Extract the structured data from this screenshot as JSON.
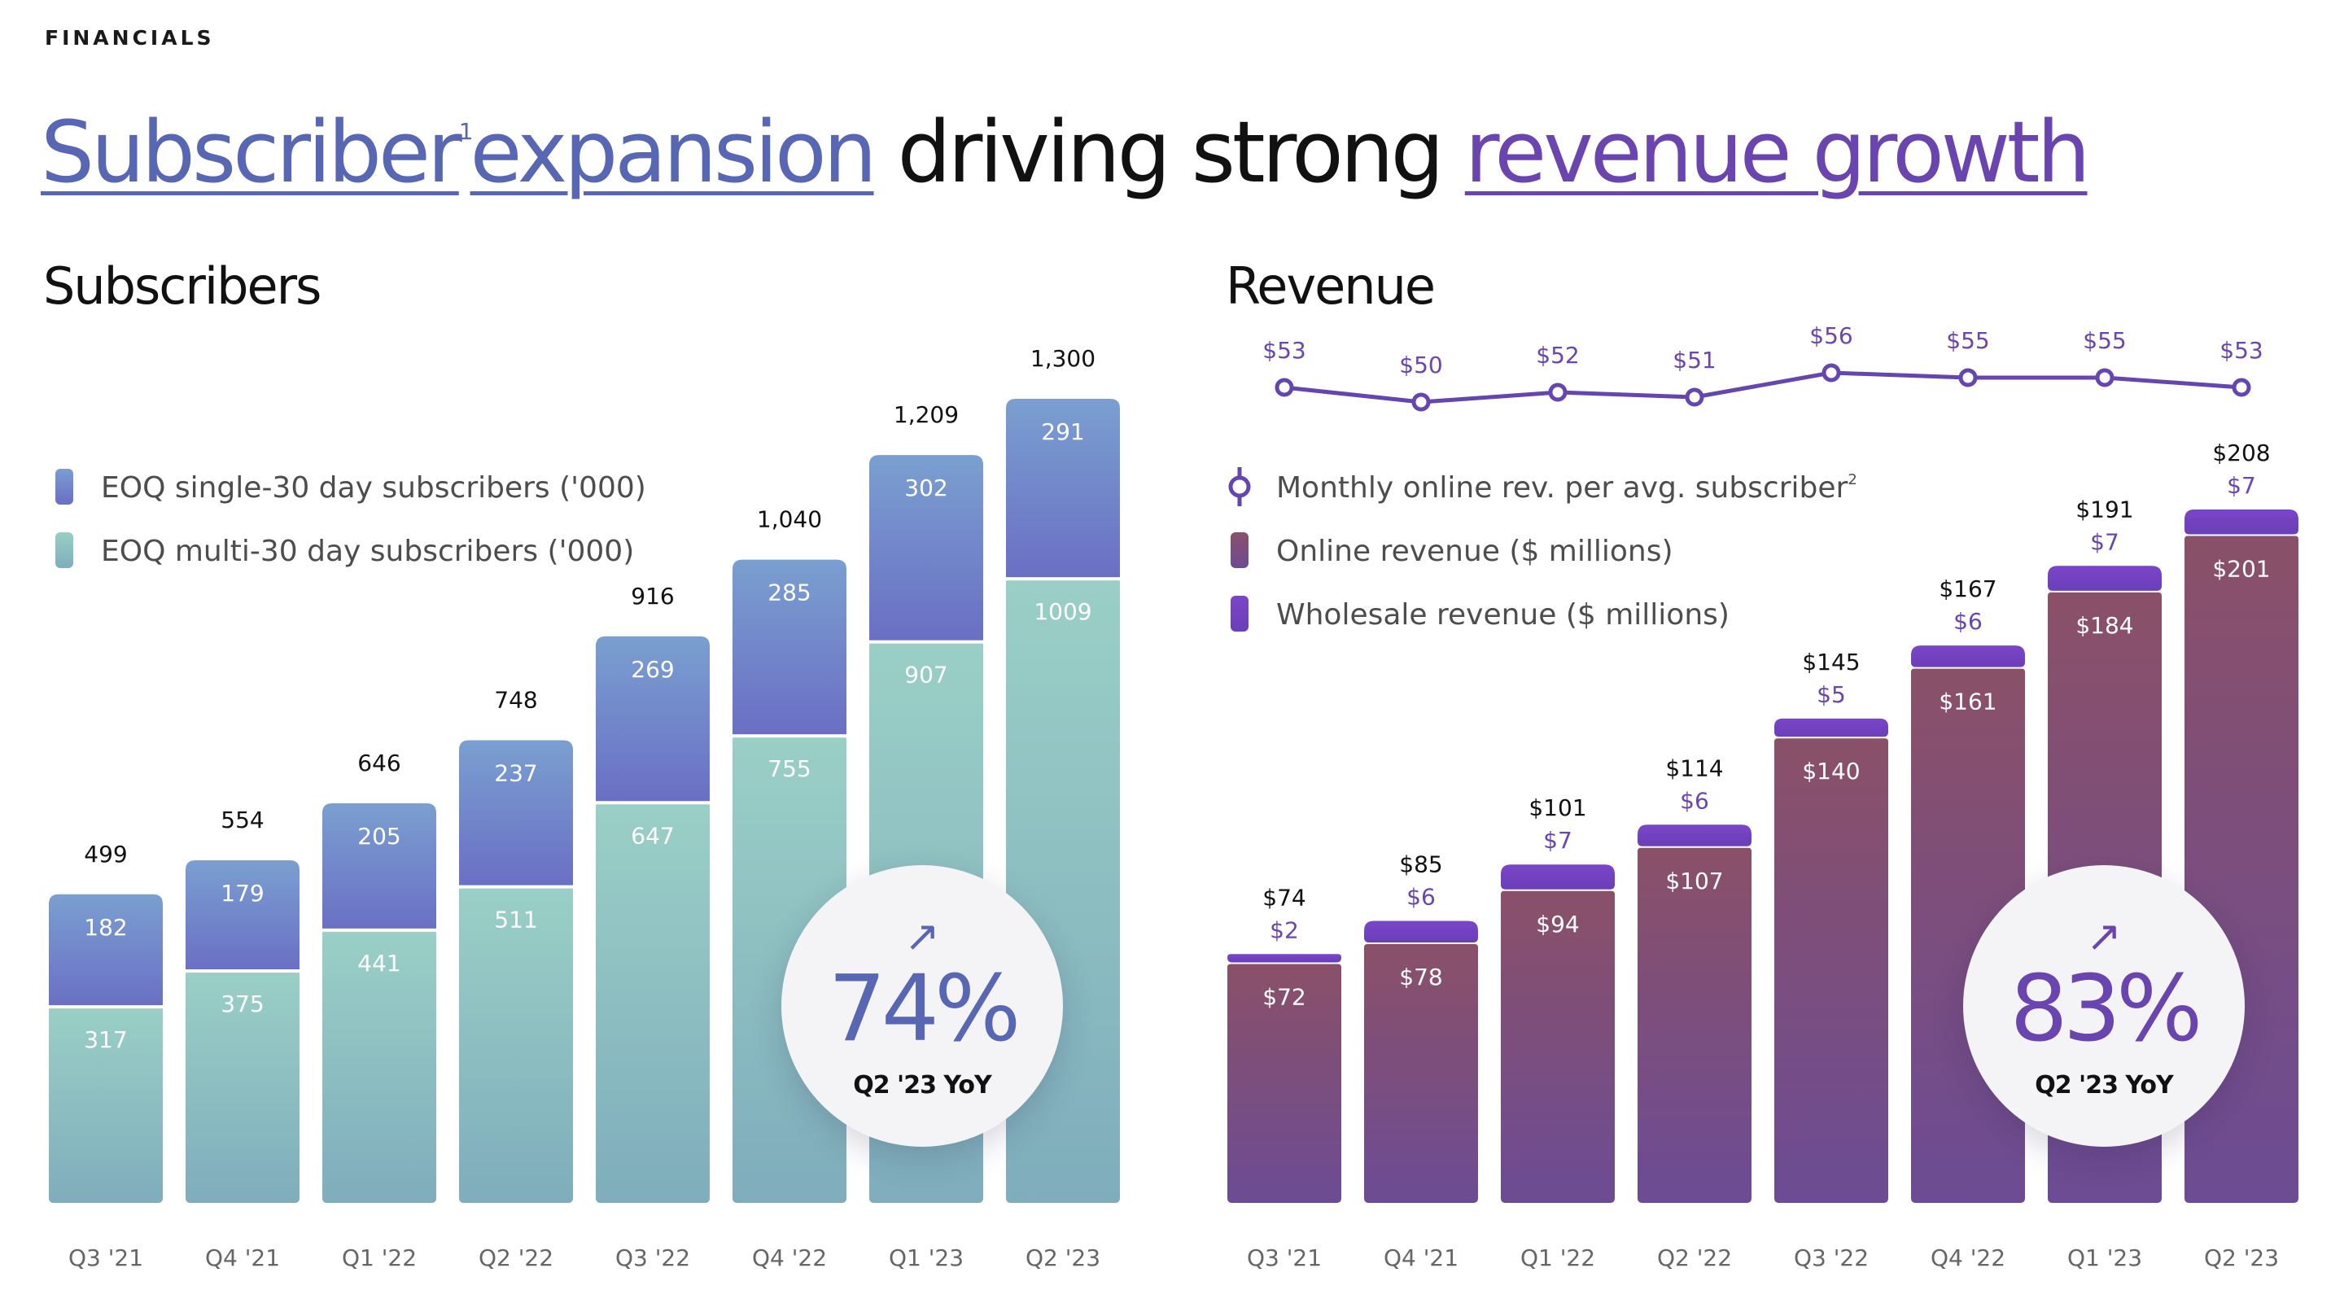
{
  "eyebrow": "FINANCIALS",
  "headline": {
    "part1": "Subscriber",
    "footnote1": "1",
    "part2": "expansion",
    "part3": " driving strong ",
    "part4": "revenue growth"
  },
  "colors": {
    "single": "#6c77c6",
    "multi": "#8fc4c0",
    "online": "#7e4f78",
    "wholesale": "#6b3fb8",
    "line": "#6545b0",
    "headline_blue": "#5867b4",
    "headline_purple": "#6a45b0"
  },
  "chart_data": [
    {
      "type": "bar",
      "stacked": true,
      "title": "Subscribers",
      "categories": [
        "Q3 '21",
        "Q4 '21",
        "Q1 '22",
        "Q2 '22",
        "Q3 '22",
        "Q4 '22",
        "Q1 '23",
        "Q2 '23"
      ],
      "series": [
        {
          "name": "EOQ multi-30 day subscribers  ('000)",
          "values": [
            317,
            375,
            441,
            511,
            647,
            755,
            907,
            1009
          ]
        },
        {
          "name": "EOQ single-30 day subscribers ('000)",
          "values": [
            182,
            179,
            205,
            237,
            269,
            285,
            302,
            291
          ]
        }
      ],
      "totals": [
        "499",
        "554",
        "646",
        "748",
        "916",
        "1,040",
        "1,209",
        "1,300"
      ],
      "ylim": [
        0,
        1300
      ],
      "legend_position": "top-left",
      "callout": {
        "value": "74%",
        "label": "Q2 '23 YoY",
        "arrow": "↗"
      }
    },
    {
      "type": "bar",
      "stacked": true,
      "title": "Revenue",
      "categories": [
        "Q3 '21",
        "Q4 '21",
        "Q1 '22",
        "Q2 '22",
        "Q3 '22",
        "Q4 '22",
        "Q1 '23",
        "Q2 '23"
      ],
      "series": [
        {
          "name": "Online revenue ($ millions)",
          "values": [
            72,
            78,
            94,
            107,
            140,
            161,
            184,
            201
          ],
          "labels": [
            "$72",
            "$78",
            "$94",
            "$107",
            "$140",
            "$161",
            "$184",
            "$201"
          ]
        },
        {
          "name": "Wholesale revenue ($ millions)",
          "values": [
            2,
            6,
            7,
            6,
            5,
            6,
            7,
            7
          ],
          "labels": [
            "$2",
            "$6",
            "$7",
            "$6",
            "$5",
            "$6",
            "$7",
            "$7"
          ]
        }
      ],
      "totals": [
        "$74",
        "$85",
        "$101",
        "$114",
        "$145",
        "$167",
        "$191",
        "$208"
      ],
      "ylim": [
        0,
        208
      ],
      "legend_position": "top-left",
      "callout": {
        "value": "83%",
        "label": "Q2 '23 YoY",
        "arrow": "↗"
      }
    },
    {
      "type": "line",
      "name": "Monthly online rev. per avg. subscriber",
      "footnote": "2",
      "categories": [
        "Q3 '21",
        "Q4 '21",
        "Q1 '22",
        "Q2 '22",
        "Q3 '22",
        "Q4 '22",
        "Q1 '23",
        "Q2 '23"
      ],
      "values": [
        53,
        50,
        52,
        51,
        56,
        55,
        55,
        53
      ],
      "labels": [
        "$53",
        "$50",
        "$52",
        "$51",
        "$56",
        "$55",
        "$55",
        "$53"
      ]
    }
  ]
}
